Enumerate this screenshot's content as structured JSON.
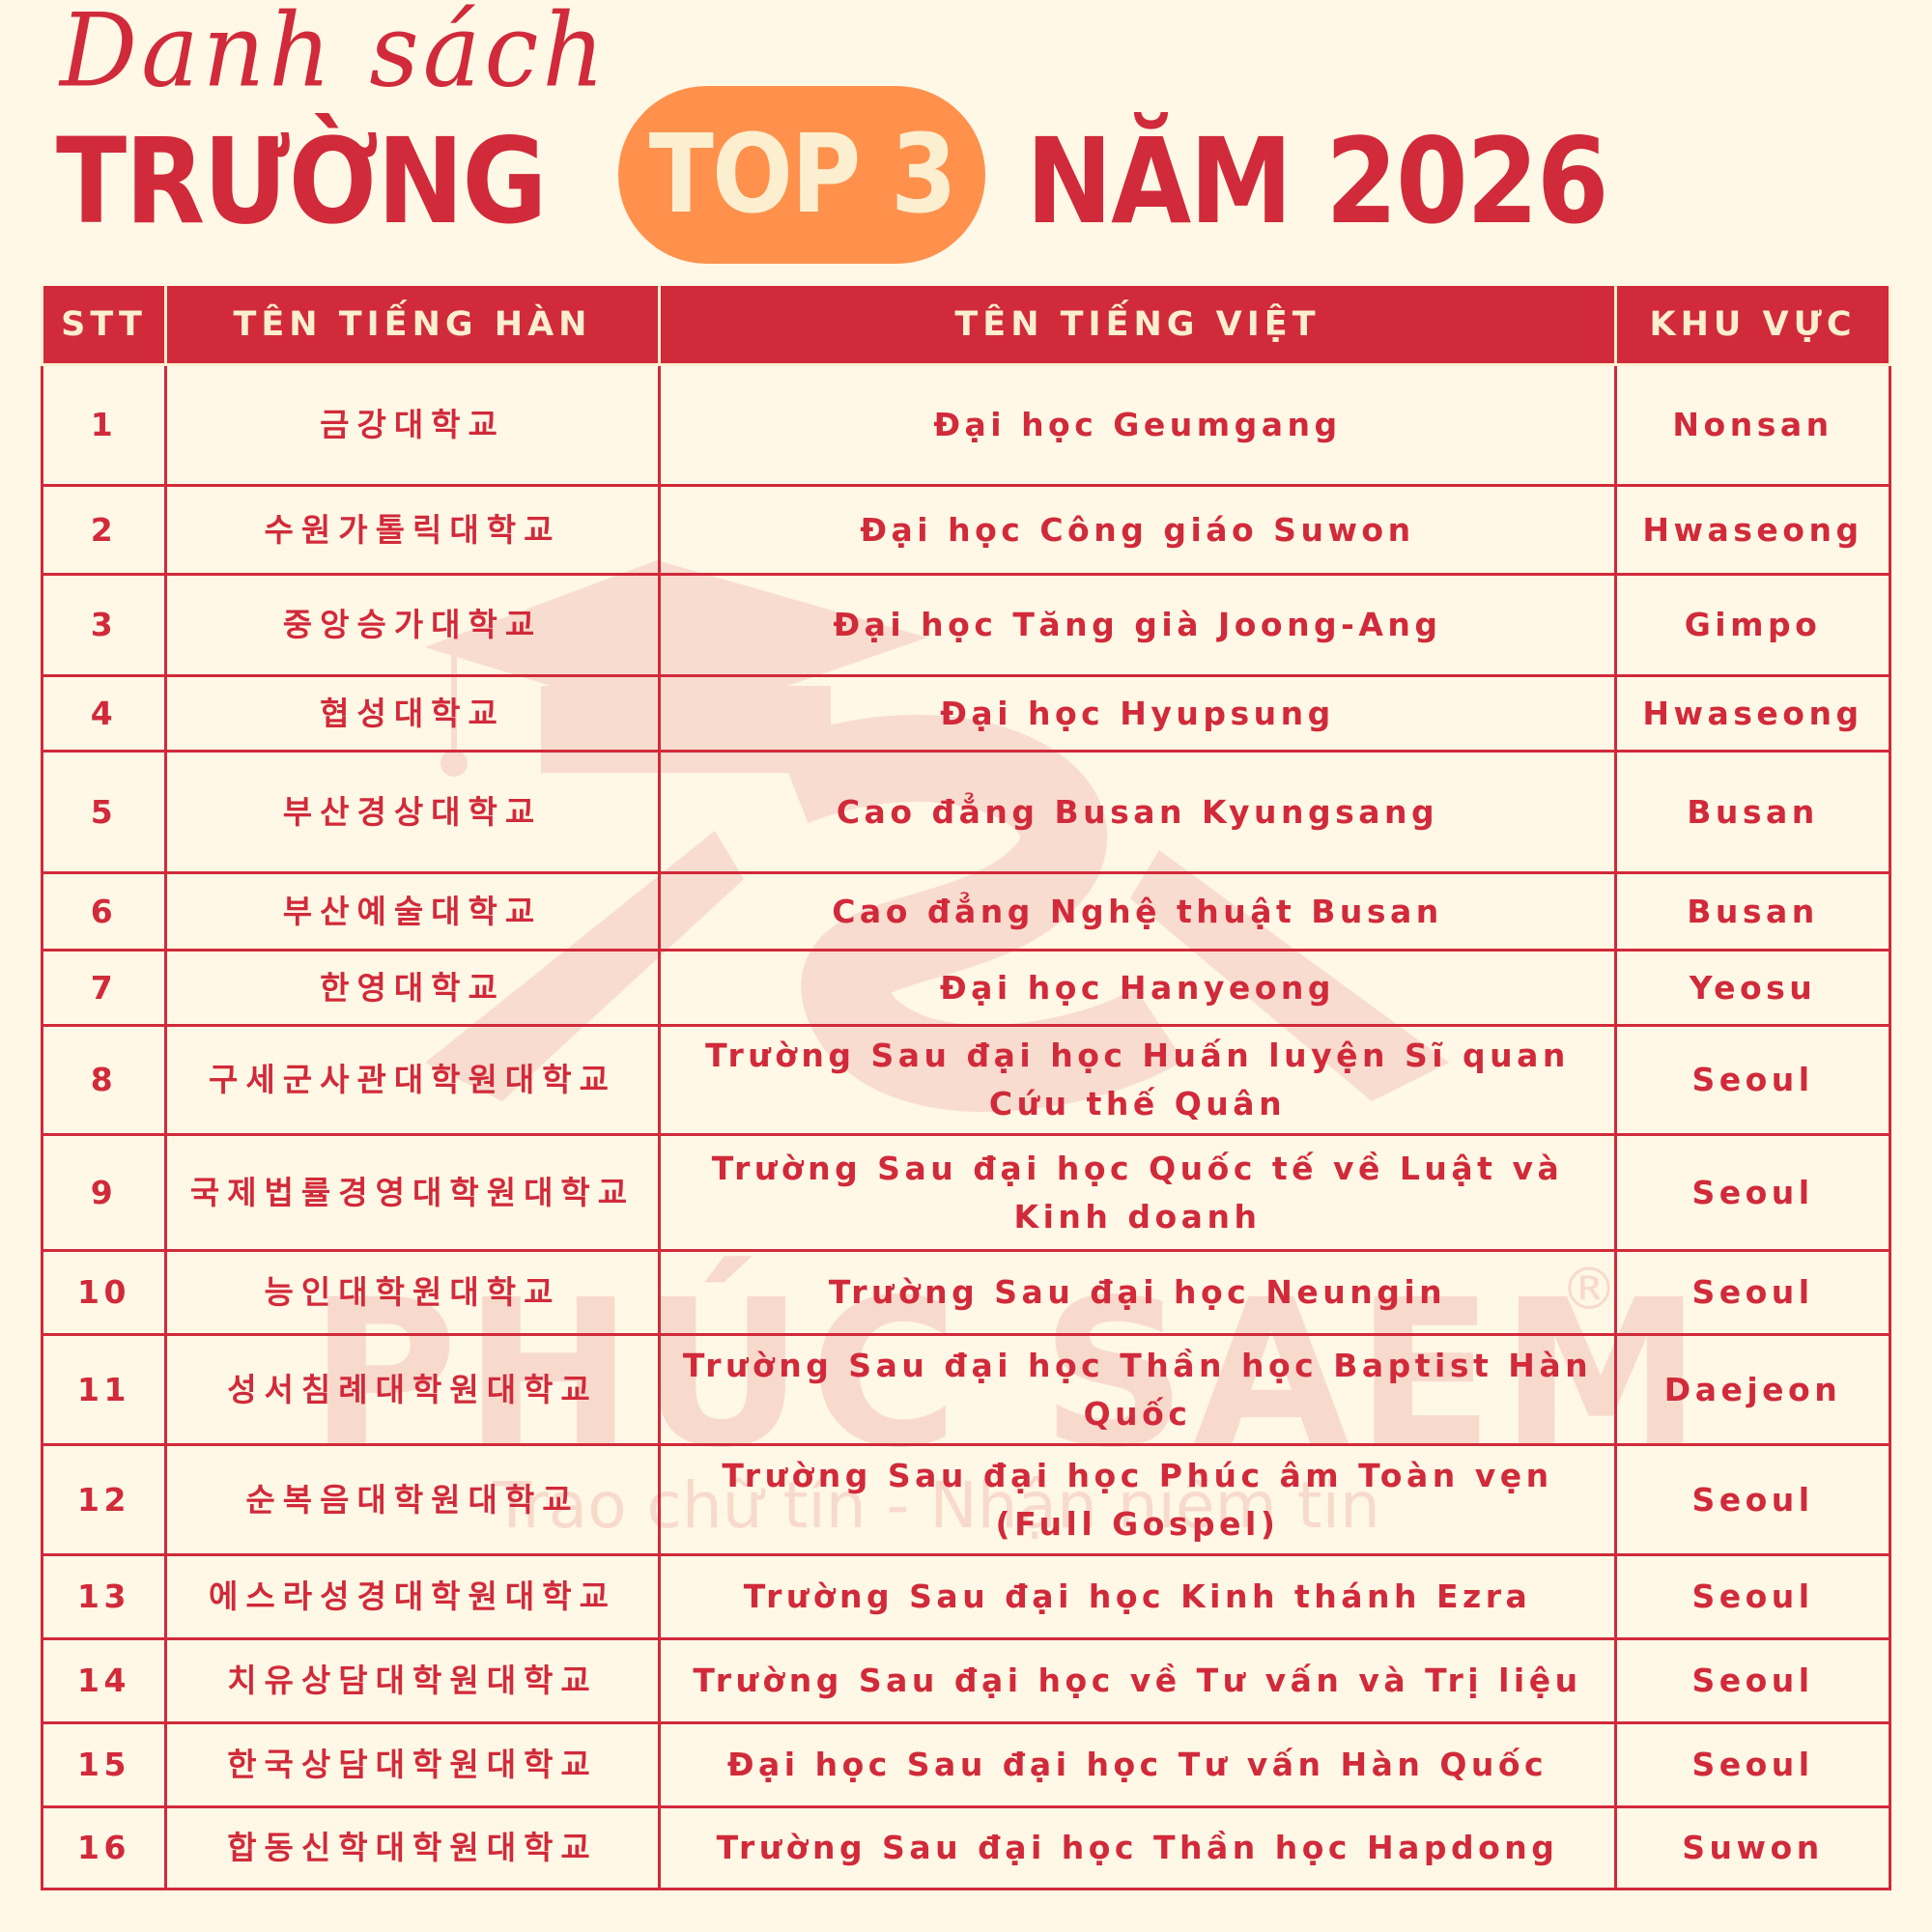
{
  "header": {
    "script_title": "Danh sách",
    "title_left": "TRƯỜNG",
    "badge": "TOP 3",
    "title_right": "NĂM 2026"
  },
  "colors": {
    "primary": "#D12A3A",
    "accent": "#FF914D",
    "background": "#FFF8E6",
    "header_text": "#FBEFD0"
  },
  "watermark": {
    "brand": "PHÚC SAEM",
    "registered": "®",
    "slogan": "Trao chữ tín - Nhận niềm tin"
  },
  "table": {
    "columns": [
      "STT",
      "TÊN TIẾNG HÀN",
      "TÊN TIẾNG VIỆT",
      "KHU VỰC"
    ],
    "rows": [
      {
        "stt": "1",
        "ko": "금강대학교",
        "vi": "Đại học Geumgang",
        "region": "Nonsan"
      },
      {
        "stt": "2",
        "ko": "수원가톨릭대학교",
        "vi": "Đại học Công giáo Suwon",
        "region": "Hwaseong"
      },
      {
        "stt": "3",
        "ko": "중앙승가대학교",
        "vi": "Đại học Tăng già Joong-Ang",
        "region": "Gimpo"
      },
      {
        "stt": "4",
        "ko": "협성대학교",
        "vi": "Đại học Hyupsung",
        "region": "Hwaseong"
      },
      {
        "stt": "5",
        "ko": "부산경상대학교",
        "vi": "Cao đẳng Busan Kyungsang",
        "region": "Busan"
      },
      {
        "stt": "6",
        "ko": "부산예술대학교",
        "vi": "Cao đẳng Nghệ thuật Busan",
        "region": "Busan"
      },
      {
        "stt": "7",
        "ko": "한영대학교",
        "vi": "Đại học Hanyeong",
        "region": "Yeosu"
      },
      {
        "stt": "8",
        "ko": "구세군사관대학원대학교",
        "vi": "Trường Sau đại học Huấn luyện Sĩ quan Cứu thế Quân",
        "region": "Seoul"
      },
      {
        "stt": "9",
        "ko": "국제법률경영대학원대학교",
        "vi": "Trường Sau đại học Quốc tế về Luật và Kinh doanh",
        "region": "Seoul"
      },
      {
        "stt": "10",
        "ko": "능인대학원대학교",
        "vi": "Trường Sau đại học Neungin",
        "region": "Seoul"
      },
      {
        "stt": "11",
        "ko": "성서침례대학원대학교",
        "vi": "Trường Sau đại học Thần học Baptist Hàn Quốc",
        "region": "Daejeon"
      },
      {
        "stt": "12",
        "ko": "순복음대학원대학교",
        "vi": "Trường Sau đại học Phúc âm Toàn vẹn (Full Gospel)",
        "region": "Seoul"
      },
      {
        "stt": "13",
        "ko": "에스라성경대학원대학교",
        "vi": "Trường Sau đại học Kinh thánh Ezra",
        "region": "Seoul"
      },
      {
        "stt": "14",
        "ko": "치유상담대학원대학교",
        "vi": "Trường Sau đại học về Tư vấn và Trị liệu",
        "region": "Seoul"
      },
      {
        "stt": "15",
        "ko": "한국상담대학원대학교",
        "vi": "Đại học Sau đại học Tư vấn Hàn Quốc",
        "region": "Seoul"
      },
      {
        "stt": "16",
        "ko": "합동신학대학원대학교",
        "vi": "Trường Sau đại học Thần học Hapdong",
        "region": "Suwon"
      }
    ]
  }
}
